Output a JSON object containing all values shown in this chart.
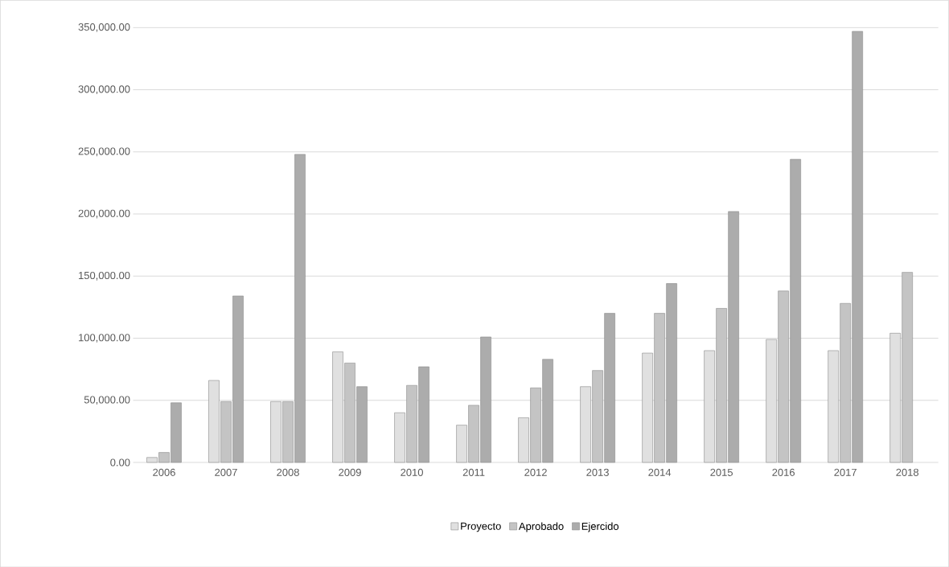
{
  "chart_data": {
    "type": "bar",
    "categories": [
      "2006",
      "2007",
      "2008",
      "2009",
      "2010",
      "2011",
      "2012",
      "2013",
      "2014",
      "2015",
      "2016",
      "2017",
      "2018"
    ],
    "series": [
      {
        "name": "Proyecto",
        "color": "#e0e0e0",
        "values": [
          4000,
          66000,
          49000,
          89000,
          40000,
          30000,
          36000,
          61000,
          88000,
          90000,
          99000,
          90000,
          104000
        ]
      },
      {
        "name": "Aprobado",
        "color": "#c4c4c4",
        "values": [
          8000,
          49000,
          49000,
          80000,
          62000,
          46000,
          60000,
          74000,
          120000,
          124000,
          138000,
          128000,
          153000
        ]
      },
      {
        "name": "Ejercido",
        "color": "#acacac",
        "values": [
          48000,
          134000,
          248000,
          61000,
          77000,
          101000,
          83000,
          120000,
          144000,
          202000,
          244000,
          347000,
          null
        ]
      }
    ],
    "ylim": [
      0,
      350000
    ],
    "yticks": [
      {
        "value": 0,
        "label": "0.00"
      },
      {
        "value": 50000,
        "label": "50,000.00"
      },
      {
        "value": 100000,
        "label": "100,000.00"
      },
      {
        "value": 150000,
        "label": "150,000.00"
      },
      {
        "value": 200000,
        "label": "200,000.00"
      },
      {
        "value": 250000,
        "label": "250,000.00"
      },
      {
        "value": 300000,
        "label": "300,000.00"
      },
      {
        "value": 350000,
        "label": "350,000.00"
      }
    ],
    "grid": "y",
    "legend": "bottom"
  }
}
